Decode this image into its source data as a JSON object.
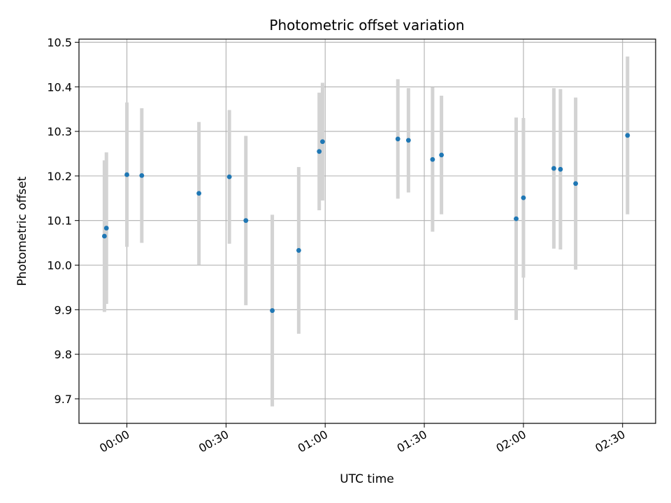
{
  "chart_data": {
    "type": "scatter",
    "title": "Photometric offset variation",
    "xlabel": "UTC time",
    "ylabel": "Photometric offset",
    "x_unit": "minutes relative to 00:00 UTC",
    "xlim": [
      -14.5,
      160
    ],
    "ylim": [
      9.645,
      10.507
    ],
    "grid": true,
    "legend": "none",
    "x_ticks": [
      {
        "value": 0,
        "label": "00:00"
      },
      {
        "value": 30,
        "label": "00:30"
      },
      {
        "value": 60,
        "label": "01:00"
      },
      {
        "value": 90,
        "label": "01:30"
      },
      {
        "value": 120,
        "label": "02:00"
      },
      {
        "value": 150,
        "label": "02:30"
      }
    ],
    "y_ticks": [
      {
        "value": 9.7,
        "label": "9.7"
      },
      {
        "value": 9.8,
        "label": "9.8"
      },
      {
        "value": 9.9,
        "label": "9.9"
      },
      {
        "value": 10.0,
        "label": "10.0"
      },
      {
        "value": 10.1,
        "label": "10.1"
      },
      {
        "value": 10.2,
        "label": "10.2"
      },
      {
        "value": 10.3,
        "label": "10.3"
      },
      {
        "value": 10.4,
        "label": "10.4"
      },
      {
        "value": 10.5,
        "label": "10.5"
      }
    ],
    "colors": {
      "point": "#1f77b4",
      "errorbar": "#d3d3d3",
      "grid": "#b0b0b0",
      "axis": "#000000"
    },
    "points": [
      {
        "x": -6.8,
        "y": 10.065,
        "err": 0.17
      },
      {
        "x": -6.2,
        "y": 10.083,
        "err": 0.17
      },
      {
        "x": 0.0,
        "y": 10.203,
        "err": 0.162
      },
      {
        "x": 4.5,
        "y": 10.201,
        "err": 0.151
      },
      {
        "x": 21.8,
        "y": 10.161,
        "err": 0.16
      },
      {
        "x": 31.0,
        "y": 10.198,
        "err": 0.15
      },
      {
        "x": 36.0,
        "y": 10.1,
        "err": 0.19
      },
      {
        "x": 44.0,
        "y": 9.898,
        "err": 0.215
      },
      {
        "x": 52.0,
        "y": 10.033,
        "err": 0.187
      },
      {
        "x": 58.2,
        "y": 10.255,
        "err": 0.132
      },
      {
        "x": 59.2,
        "y": 10.277,
        "err": 0.132
      },
      {
        "x": 82.0,
        "y": 10.283,
        "err": 0.134
      },
      {
        "x": 85.2,
        "y": 10.28,
        "err": 0.117
      },
      {
        "x": 92.5,
        "y": 10.237,
        "err": 0.162
      },
      {
        "x": 95.2,
        "y": 10.247,
        "err": 0.133
      },
      {
        "x": 117.8,
        "y": 10.104,
        "err": 0.227
      },
      {
        "x": 120.0,
        "y": 10.151,
        "err": 0.179
      },
      {
        "x": 129.2,
        "y": 10.217,
        "err": 0.18
      },
      {
        "x": 131.2,
        "y": 10.215,
        "err": 0.18
      },
      {
        "x": 135.8,
        "y": 10.183,
        "err": 0.193
      },
      {
        "x": 151.5,
        "y": 10.291,
        "err": 0.177
      }
    ]
  }
}
